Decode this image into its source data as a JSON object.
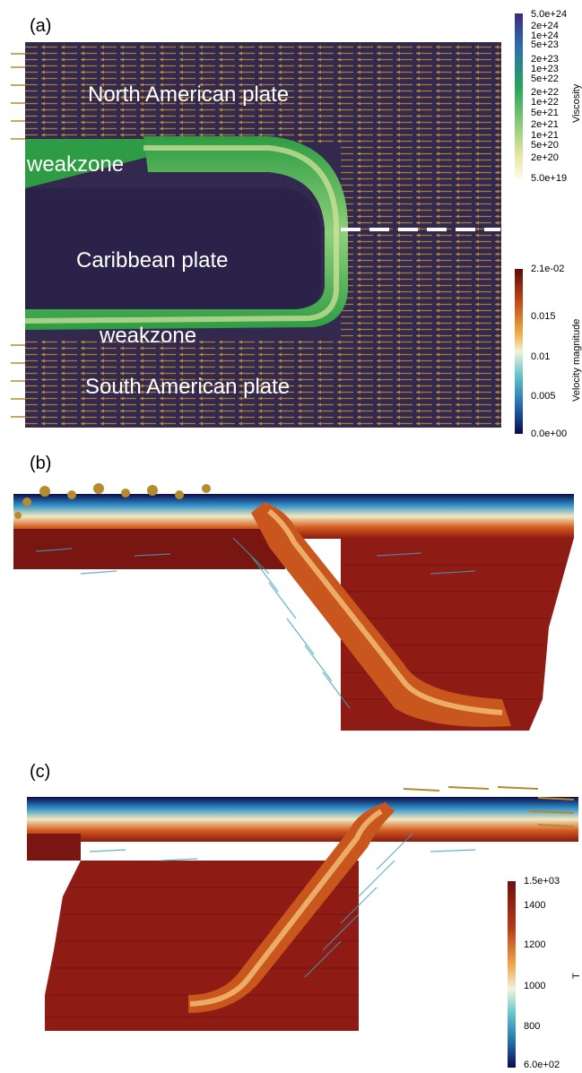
{
  "panels": {
    "a": {
      "label": "(a)",
      "plates": {
        "north": "North American plate",
        "caribbean": "Caribbean plate",
        "south": "South American plate",
        "weakzone_top": "weakzone",
        "weakzone_bottom": "weakzone"
      },
      "viscosity_colorbar": {
        "title": "Viscosity",
        "ticks": [
          "5.0e+24",
          "2e+24",
          "1e+24",
          "5e+23",
          "2e+23",
          "1e+23",
          "5e+22",
          "2e+22",
          "1e+22",
          "5e+21",
          "2e+21",
          "1e+21",
          "5e+20",
          "2e+20",
          "5.0e+19"
        ],
        "colors": [
          "#3b2a7a",
          "#2c6fb0",
          "#2aa35a",
          "#7fc874",
          "#e6e3a0",
          "#fdfbe6"
        ]
      },
      "velocity_colorbar": {
        "title": "Velocity magnitude",
        "ticks": [
          "2.1e-02",
          "0.015",
          "0.01",
          "0.005",
          "0.0e+00"
        ],
        "colors": [
          "#5c0a0a",
          "#c24a1a",
          "#efb24b",
          "#f1f3d8",
          "#5fc3c9",
          "#1f5fa8",
          "#0a0a4a"
        ]
      },
      "colors": {
        "background": "#33294f",
        "weakzone": "#2e9c44",
        "arrow": "#b88a2e"
      }
    },
    "b": {
      "label": "(b)"
    },
    "c": {
      "label": "(c)",
      "temperature_colorbar": {
        "title": "T",
        "ticks": [
          "1.5e+03",
          "1400",
          "1200",
          "1000",
          "800",
          "6.0e+02"
        ],
        "colors": [
          "#6e1010",
          "#b73a16",
          "#eea94a",
          "#f0f2e0",
          "#5cc2c6",
          "#2062a8",
          "#0c0b4c"
        ]
      }
    }
  }
}
